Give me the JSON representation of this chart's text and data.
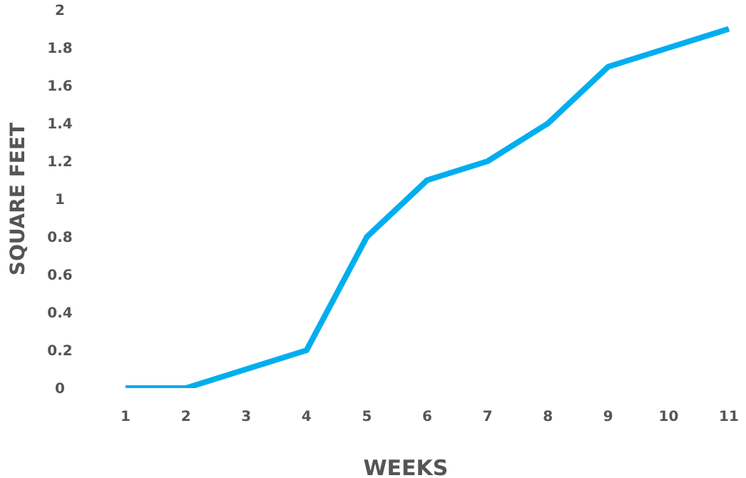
{
  "chart_data": {
    "type": "line",
    "xlabel": "WEEKS",
    "ylabel": "SQUARE FEET",
    "categories": [
      "1",
      "2",
      "3",
      "4",
      "5",
      "6",
      "7",
      "8",
      "9",
      "10",
      "11"
    ],
    "series": [
      {
        "color": "#00aeef",
        "values": [
          0,
          0,
          0.1,
          0.2,
          0.8,
          1.1,
          1.2,
          1.4,
          1.7,
          1.8,
          1.9
        ]
      }
    ],
    "ylim": [
      0,
      2
    ],
    "yticks": [
      0,
      0.2,
      0.4,
      0.6,
      0.8,
      1,
      1.2,
      1.4,
      1.6,
      1.8,
      2
    ],
    "grid": false,
    "legend": false,
    "marker": "none",
    "line_style": "solid"
  }
}
